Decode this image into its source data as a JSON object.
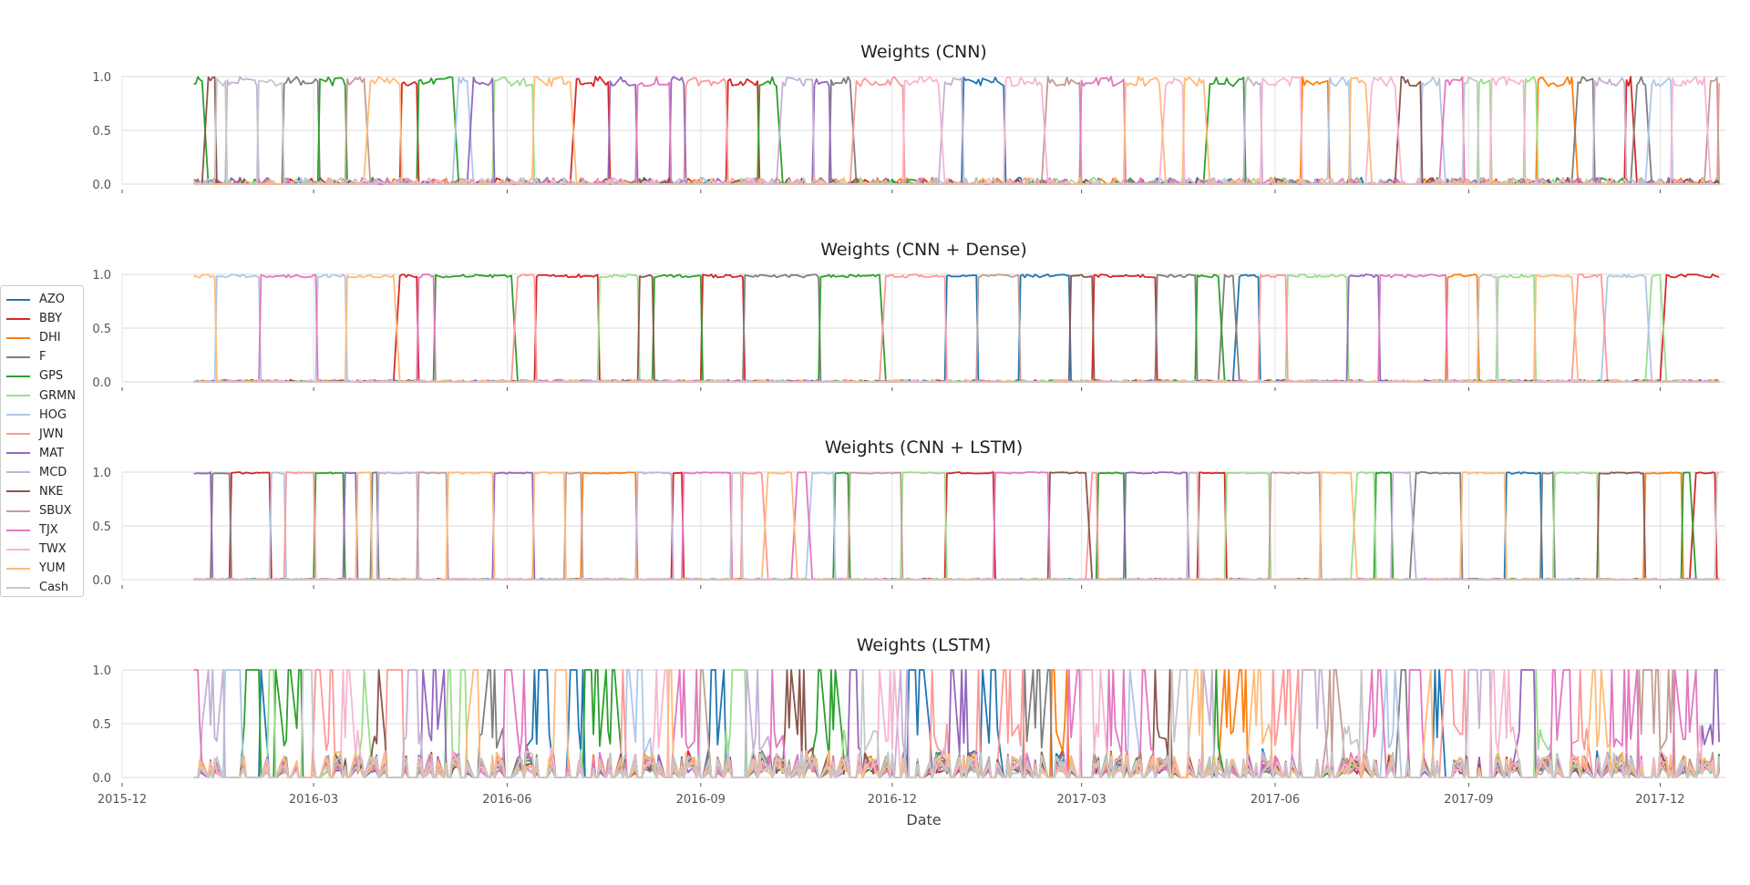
{
  "chart_data": {
    "type": "line",
    "xlabel": "Date",
    "x_ticks": [
      "2015-12",
      "2016-03",
      "2016-06",
      "2016-09",
      "2016-12",
      "2017-03",
      "2017-06",
      "2017-09",
      "2017-12"
    ],
    "y_ticks": [
      "0.0",
      "0.5",
      "1.0"
    ],
    "ylim": [
      0,
      1
    ],
    "x_range": [
      "2015-12-01",
      "2018-01-01"
    ],
    "data_start": "2016-01-04",
    "data_end": "2017-12-29",
    "grid": true,
    "legend_position": "left",
    "series": [
      {
        "name": "AZO",
        "color": "#1f77b4"
      },
      {
        "name": "BBY",
        "color": "#d62728"
      },
      {
        "name": "DHI",
        "color": "#ff7f0e"
      },
      {
        "name": "F",
        "color": "#7f7f7f"
      },
      {
        "name": "GPS",
        "color": "#2ca02c"
      },
      {
        "name": "GRMN",
        "color": "#98df8a"
      },
      {
        "name": "HOG",
        "color": "#aec7e8"
      },
      {
        "name": "JWN",
        "color": "#ff9896"
      },
      {
        "name": "MAT",
        "color": "#9467bd"
      },
      {
        "name": "MCD",
        "color": "#c5b0d5"
      },
      {
        "name": "NKE",
        "color": "#8c564b"
      },
      {
        "name": "SBUX",
        "color": "#c49c94"
      },
      {
        "name": "TJX",
        "color": "#e377c2"
      },
      {
        "name": "TWX",
        "color": "#f7b6d2"
      },
      {
        "name": "YUM",
        "color": "#ffbb78"
      },
      {
        "name": "Cash",
        "color": "#c7c7c7"
      }
    ],
    "panels": [
      {
        "title": "Weights (CNN)",
        "regime": "rotate",
        "seed": 11,
        "noise": 0.06,
        "block": [
          3,
          14
        ],
        "holdout": 0.08
      },
      {
        "title": "Weights (CNN + Dense)",
        "regime": "rotate",
        "seed": 29,
        "noise": 0.02,
        "block": [
          5,
          22
        ],
        "holdout": 0.0
      },
      {
        "title": "Weights (CNN + LSTM)",
        "regime": "rotate",
        "seed": 47,
        "noise": 0.01,
        "block": [
          3,
          18
        ],
        "holdout": 0.0
      },
      {
        "title": "Weights (LSTM)",
        "regime": "diffuse",
        "seed": 83,
        "noise": 0.05,
        "block": [
          2,
          9
        ],
        "holdout": 0.0
      }
    ]
  }
}
